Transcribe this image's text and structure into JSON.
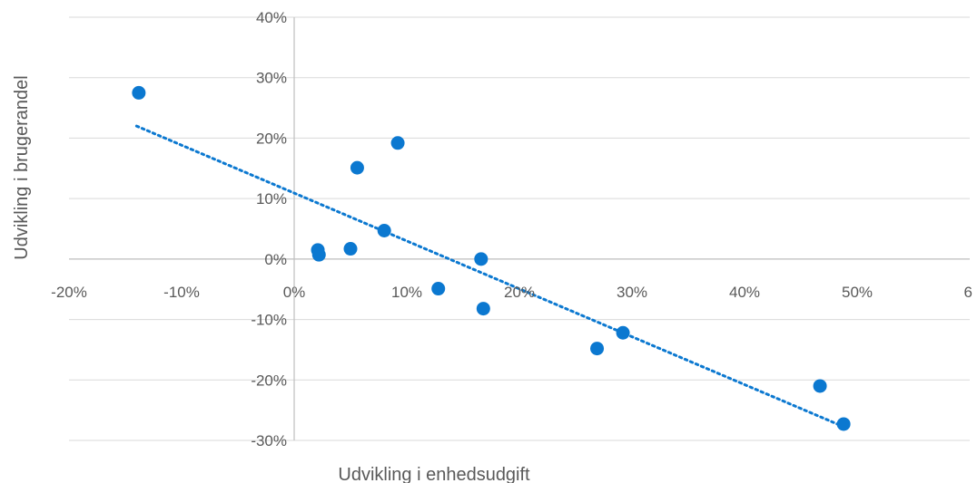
{
  "chart_data": {
    "type": "scatter",
    "xlabel": "Udvikling i enhedsudgift",
    "ylabel": "Udvikling i brugerandel",
    "xlim": [
      -0.2,
      0.6
    ],
    "ylim": [
      -0.3,
      0.4
    ],
    "x_tick_values": [
      -0.2,
      -0.1,
      0,
      0.1,
      0.2,
      0.3,
      0.4,
      0.5
    ],
    "x_tick_labels": [
      "-20%",
      "-10%",
      "0%",
      "10%",
      "20%",
      "30%",
      "40%",
      "50%"
    ],
    "x_tick_edge_label": "6",
    "y_tick_values": [
      0.4,
      0.3,
      0.2,
      0.1,
      0,
      -0.1,
      -0.2,
      -0.3
    ],
    "y_tick_labels": [
      "40%",
      "30%",
      "20%",
      "10%",
      "0%",
      "-10%",
      "-20%",
      "-30%"
    ],
    "grid": true,
    "point_color": "#0b78d0",
    "trendline": {
      "style": "dotted",
      "color": "#0b78d0",
      "x": [
        -0.14,
        0.485
      ],
      "y": [
        0.22,
        -0.275
      ]
    },
    "series": [
      {
        "points": [
          {
            "x": -0.138,
            "y": 0.275
          },
          {
            "x": 0.092,
            "y": 0.192
          },
          {
            "x": 0.056,
            "y": 0.151
          },
          {
            "x": 0.08,
            "y": 0.047
          },
          {
            "x": 0.021,
            "y": 0.015
          },
          {
            "x": 0.022,
            "y": 0.007
          },
          {
            "x": 0.05,
            "y": 0.017
          },
          {
            "x": 0.166,
            "y": 0.0
          },
          {
            "x": 0.128,
            "y": -0.049
          },
          {
            "x": 0.168,
            "y": -0.082
          },
          {
            "x": 0.269,
            "y": -0.148
          },
          {
            "x": 0.292,
            "y": -0.122
          },
          {
            "x": 0.467,
            "y": -0.21
          },
          {
            "x": 0.488,
            "y": -0.273
          }
        ]
      }
    ]
  }
}
